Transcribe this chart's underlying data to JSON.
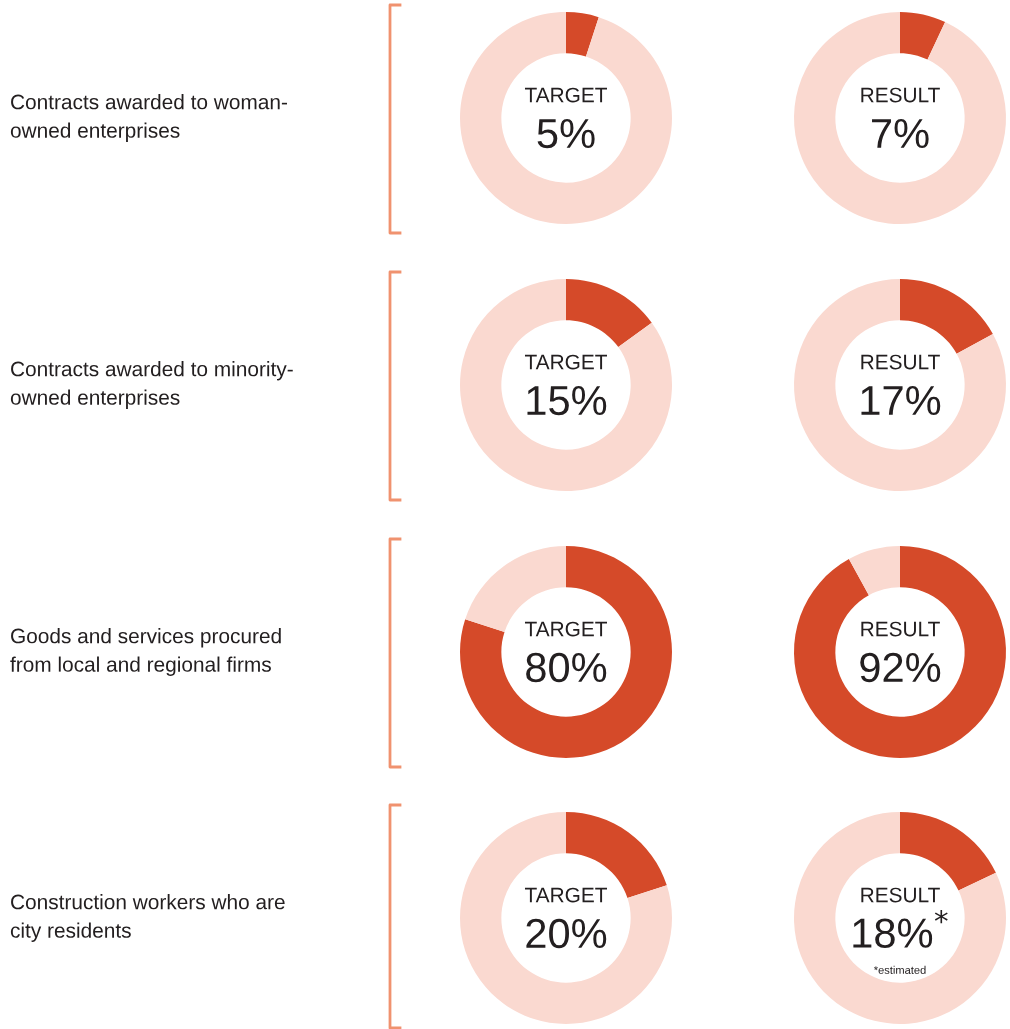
{
  "chart_data": [
    {
      "type": "donut",
      "ylabel": "Contracts awarded to woman-\nowned enterprises",
      "categories": [
        null,
        null
      ],
      "values": [
        5,
        95
      ],
      "colors": [
        "#d54a29",
        "#fad9d0"
      ],
      "annotations": [
        "TARGET",
        "5%"
      ]
    },
    {
      "type": "donut",
      "categories": [
        null,
        null
      ],
      "values": [
        7,
        93
      ],
      "colors": [
        "#d54a29",
        "#fad9d0"
      ],
      "annotations": [
        "RESULT",
        "7%"
      ]
    },
    {
      "type": "donut",
      "ylabel": "Contracts awarded to minority-\nowned enterprises",
      "categories": [
        null,
        null
      ],
      "values": [
        15,
        85
      ],
      "colors": [
        "#d54a29",
        "#fad9d0"
      ],
      "annotations": [
        "TARGET",
        "15%"
      ]
    },
    {
      "type": "donut",
      "categories": [
        null,
        null
      ],
      "values": [
        17,
        83
      ],
      "colors": [
        "#d54a29",
        "#fad9d0"
      ],
      "annotations": [
        "RESULT",
        "17%"
      ]
    },
    {
      "type": "donut",
      "ylabel": "Goods and services procured\nfrom local and regional firms",
      "categories": [
        null,
        null
      ],
      "values": [
        80,
        20
      ],
      "colors": [
        "#d54a29",
        "#fad9d0"
      ],
      "annotations": [
        "TARGET",
        "80%"
      ]
    },
    {
      "type": "donut",
      "categories": [
        null,
        null
      ],
      "values": [
        92,
        8
      ],
      "colors": [
        "#d54a29",
        "#fad9d0"
      ],
      "annotations": [
        "RESULT",
        "92%"
      ]
    },
    {
      "type": "donut",
      "ylabel": "Construction workers who are\ncity residents",
      "categories": [
        null,
        null
      ],
      "values": [
        20,
        80
      ],
      "colors": [
        "#d54a29",
        "#fad9d0"
      ],
      "annotations": [
        "TARGET",
        "20%"
      ]
    },
    {
      "type": "donut",
      "categories": [
        null,
        null
      ],
      "values": [
        18,
        82
      ],
      "colors": [
        "#d54a29",
        "#fad9d0"
      ],
      "annotations": [
        "RESULT",
        "18%$^{*}$",
        "*estimated"
      ]
    }
  ]
}
